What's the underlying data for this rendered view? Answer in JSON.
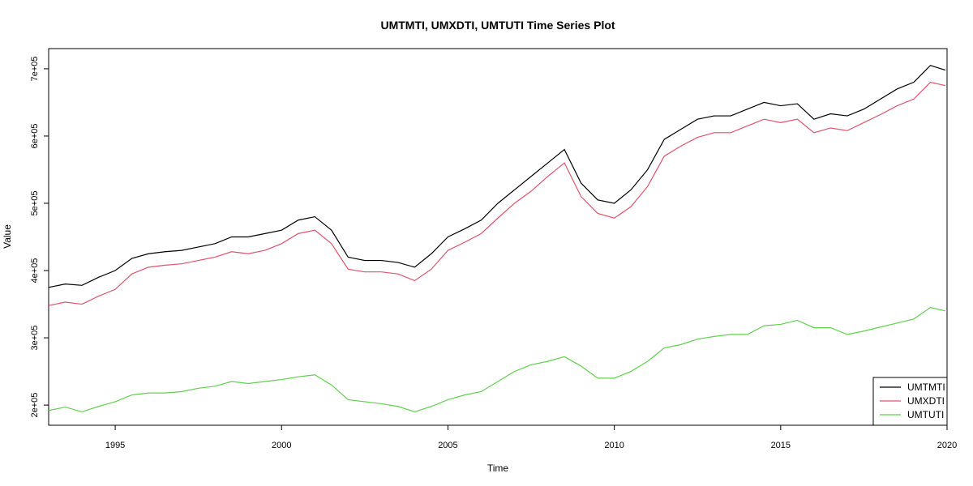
{
  "chart_data": {
    "type": "line",
    "title": "UMTMTI, UMXDTI, UMTUTI Time Series Plot",
    "xlabel": "Time",
    "ylabel": "Value",
    "xlim": [
      1993,
      2020
    ],
    "ylim": [
      170000,
      730000
    ],
    "x_ticks": [
      1995,
      2000,
      2005,
      2010,
      2015,
      2020
    ],
    "x_tick_labels": [
      "1995",
      "2000",
      "2005",
      "2010",
      "2015",
      "2020"
    ],
    "y_ticks": [
      200000,
      300000,
      400000,
      500000,
      600000,
      700000
    ],
    "y_tick_labels": [
      "2e+05",
      "3e+05",
      "4e+05",
      "5e+05",
      "6e+05",
      "7e+05"
    ],
    "legend_position": "bottom-right",
    "grid": false,
    "x": [
      1993.0,
      1993.5,
      1994.0,
      1994.5,
      1995.0,
      1995.5,
      1996.0,
      1996.5,
      1997.0,
      1997.5,
      1998.0,
      1998.5,
      1999.0,
      1999.5,
      2000.0,
      2000.5,
      2001.0,
      2001.5,
      2002.0,
      2002.5,
      2003.0,
      2003.5,
      2004.0,
      2004.5,
      2005.0,
      2005.5,
      2006.0,
      2006.5,
      2007.0,
      2007.5,
      2008.0,
      2008.5,
      2009.0,
      2009.5,
      2010.0,
      2010.5,
      2011.0,
      2011.5,
      2012.0,
      2012.5,
      2013.0,
      2013.5,
      2014.0,
      2014.5,
      2015.0,
      2015.5,
      2016.0,
      2016.5,
      2017.0,
      2017.5,
      2018.0,
      2018.5,
      2019.0,
      2019.5,
      2019.95
    ],
    "series": [
      {
        "name": "UMTMTI",
        "color": "#000000",
        "values": [
          375000,
          380000,
          378000,
          390000,
          400000,
          418000,
          425000,
          428000,
          430000,
          435000,
          440000,
          450000,
          450000,
          455000,
          460000,
          475000,
          480000,
          460000,
          420000,
          415000,
          415000,
          412000,
          405000,
          425000,
          450000,
          462000,
          475000,
          500000,
          520000,
          540000,
          560000,
          580000,
          530000,
          505000,
          500000,
          520000,
          550000,
          595000,
          610000,
          625000,
          630000,
          630000,
          640000,
          650000,
          645000,
          648000,
          625000,
          633000,
          630000,
          640000,
          655000,
          670000,
          680000,
          705000,
          698000
        ]
      },
      {
        "name": "UMXDTI",
        "color": "#DF536B",
        "values": [
          348000,
          353000,
          350000,
          362000,
          372000,
          395000,
          405000,
          408000,
          410000,
          415000,
          420000,
          428000,
          425000,
          430000,
          440000,
          455000,
          460000,
          440000,
          402000,
          398000,
          398000,
          395000,
          385000,
          402000,
          430000,
          442000,
          455000,
          478000,
          500000,
          518000,
          540000,
          560000,
          510000,
          485000,
          478000,
          495000,
          525000,
          570000,
          585000,
          598000,
          605000,
          605000,
          615000,
          625000,
          620000,
          625000,
          605000,
          612000,
          608000,
          620000,
          632000,
          645000,
          655000,
          680000,
          675000
        ]
      },
      {
        "name": "UMTUTI",
        "color": "#61D04F",
        "values": [
          192000,
          197000,
          190000,
          198000,
          205000,
          215000,
          218000,
          218000,
          220000,
          225000,
          228000,
          235000,
          232000,
          235000,
          238000,
          242000,
          245000,
          230000,
          208000,
          205000,
          202000,
          198000,
          190000,
          198000,
          208000,
          215000,
          220000,
          235000,
          250000,
          260000,
          265000,
          272000,
          258000,
          240000,
          240000,
          250000,
          265000,
          285000,
          290000,
          298000,
          302000,
          305000,
          305000,
          318000,
          320000,
          326000,
          315000,
          315000,
          305000,
          310000,
          316000,
          322000,
          328000,
          345000,
          340000
        ]
      }
    ]
  }
}
